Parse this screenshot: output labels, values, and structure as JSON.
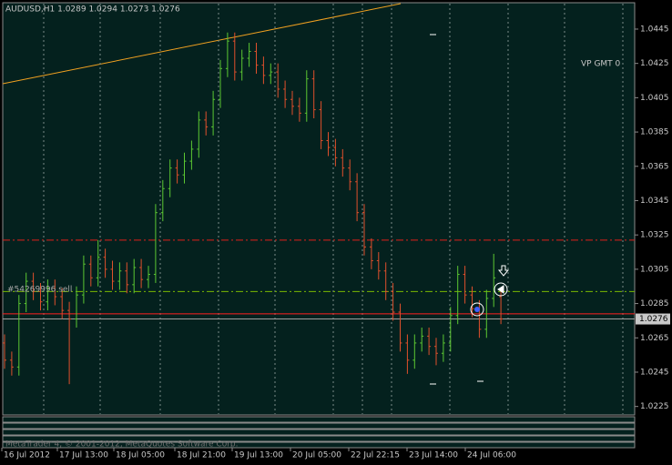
{
  "chart_data": {
    "type": "ohlc",
    "title": "AUDUSD,H1  1.0289 1.0294 1.0273 1.0276",
    "annotation": "VP GMT 0",
    "footer": "MetaTrader 4, © 2001-2012, MetaQuotes Software Corp.",
    "order_label": "#54269996 sell",
    "up_color": "#5cc832",
    "down_color": "#e0502c",
    "ylim": [
      1.022,
      1.046
    ],
    "yticks": [
      1.0225,
      1.0245,
      1.0265,
      1.0285,
      1.0305,
      1.0325,
      1.0345,
      1.0365,
      1.0385,
      1.0405,
      1.0425,
      1.0445
    ],
    "time_labels": [
      "16 Jul 2012",
      "17 Jul 13:00",
      "18 Jul 05:00",
      "18 Jul 21:00",
      "19 Jul 13:00",
      "20 Jul 05:00",
      "22 Jul 22:15",
      "23 Jul 14:00",
      "24 Jul 06:00"
    ],
    "levels": [
      {
        "value": 1.0322,
        "color": "#e0201a",
        "style": "dashdot"
      },
      {
        "value": 1.0292,
        "color": "#7ab800",
        "style": "dashdot"
      },
      {
        "value": 1.0279,
        "color": "#ff2020",
        "style": "solid"
      },
      {
        "value": 1.0276,
        "color": "#a0a0a0",
        "style": "solid"
      }
    ],
    "bid": {
      "value": 1.0276,
      "label": "1.0276"
    },
    "open": [
      1.0262,
      1.0252,
      1.0248,
      1.0285,
      1.0298,
      1.0292,
      1.0286,
      1.0294,
      1.0289,
      1.0281,
      1.0276,
      1.029,
      1.0308,
      1.03,
      1.0312,
      1.0305,
      1.0298,
      1.0304,
      1.0296,
      1.0306,
      1.0299,
      1.0302,
      1.0338,
      1.0352,
      1.0364,
      1.036,
      1.0368,
      1.0375,
      1.0392,
      1.0388,
      1.0404,
      1.0422,
      1.0438,
      1.042,
      1.0428,
      1.0432,
      1.0424,
      1.0418,
      1.042,
      1.041,
      1.0404,
      1.04,
      1.0396,
      1.0416,
      1.0398,
      1.038,
      1.0376,
      1.037,
      1.0364,
      1.0356,
      1.0338,
      1.0318,
      1.031,
      1.0304,
      1.0292,
      1.028,
      1.0262,
      1.0252,
      1.0262,
      1.0266,
      1.026,
      1.0256,
      1.0262,
      1.0278,
      1.0302,
      1.029,
      1.0282,
      1.027,
      1.0288,
      1.0289
    ],
    "high": [
      1.0267,
      1.0257,
      1.029,
      1.0303,
      1.0303,
      1.0297,
      1.0299,
      1.0299,
      1.0294,
      1.0286,
      1.0295,
      1.0313,
      1.0313,
      1.0322,
      1.0317,
      1.031,
      1.0309,
      1.0309,
      1.0311,
      1.0311,
      1.0307,
      1.0343,
      1.0357,
      1.0369,
      1.0369,
      1.0373,
      1.038,
      1.0397,
      1.0397,
      1.0409,
      1.0427,
      1.0443,
      1.0443,
      1.0433,
      1.0437,
      1.0437,
      1.0429,
      1.0425,
      1.0425,
      1.0415,
      1.0409,
      1.0405,
      1.0421,
      1.0421,
      1.0403,
      1.0385,
      1.0381,
      1.0375,
      1.0369,
      1.0361,
      1.0343,
      1.0323,
      1.0315,
      1.0309,
      1.0297,
      1.0285,
      1.0267,
      1.0267,
      1.0271,
      1.0271,
      1.0265,
      1.0267,
      1.0283,
      1.0307,
      1.0307,
      1.0295,
      1.0287,
      1.0293,
      1.0314,
      1.0294
    ],
    "low": [
      1.0247,
      1.0243,
      1.0243,
      1.028,
      1.0287,
      1.0281,
      1.0281,
      1.0284,
      1.0276,
      1.0238,
      1.0271,
      1.0285,
      1.0295,
      1.0295,
      1.03,
      1.0293,
      1.0293,
      1.0291,
      1.0291,
      1.0294,
      1.0294,
      1.0297,
      1.0333,
      1.0347,
      1.0355,
      1.0355,
      1.0363,
      1.037,
      1.0383,
      1.0383,
      1.0399,
      1.0417,
      1.0415,
      1.0415,
      1.0423,
      1.0419,
      1.0413,
      1.0413,
      1.0405,
      1.0399,
      1.0395,
      1.0391,
      1.0391,
      1.0393,
      1.0375,
      1.0371,
      1.0365,
      1.0359,
      1.0351,
      1.0333,
      1.0313,
      1.0305,
      1.0299,
      1.0287,
      1.0275,
      1.0257,
      1.0244,
      1.0247,
      1.0257,
      1.0255,
      1.0249,
      1.0251,
      1.0257,
      1.0273,
      1.0285,
      1.0277,
      1.0265,
      1.0265,
      1.0283,
      1.0273
    ],
    "close": [
      1.0252,
      1.0248,
      1.0285,
      1.0298,
      1.0292,
      1.0286,
      1.0294,
      1.0289,
      1.0281,
      1.0276,
      1.029,
      1.0308,
      1.03,
      1.0312,
      1.0305,
      1.0298,
      1.0304,
      1.0296,
      1.0306,
      1.0299,
      1.0302,
      1.0338,
      1.0352,
      1.0364,
      1.036,
      1.0368,
      1.0375,
      1.0392,
      1.0388,
      1.0404,
      1.0422,
      1.0438,
      1.042,
      1.0428,
      1.0432,
      1.0424,
      1.0418,
      1.042,
      1.041,
      1.0404,
      1.04,
      1.0396,
      1.0416,
      1.0398,
      1.038,
      1.0376,
      1.037,
      1.0364,
      1.0356,
      1.0338,
      1.0318,
      1.031,
      1.0304,
      1.0292,
      1.028,
      1.0262,
      1.0252,
      1.0262,
      1.0266,
      1.026,
      1.0256,
      1.0262,
      1.0278,
      1.0302,
      1.029,
      1.0282,
      1.027,
      1.0288,
      1.03,
      1.0276
    ]
  }
}
